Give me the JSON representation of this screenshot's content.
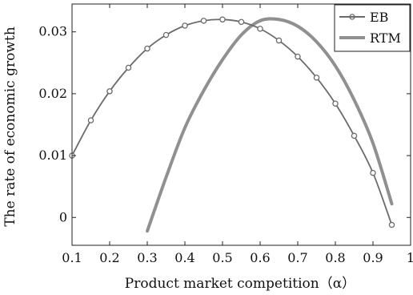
{
  "chart_data": {
    "type": "line",
    "xlabel": "Product market competition（α）",
    "ylabel": "The rate of economic growth",
    "xlim": [
      0.1,
      1.0
    ],
    "ylim": [
      -0.0045,
      0.0345
    ],
    "xticks": [
      0.1,
      0.2,
      0.3,
      0.4,
      0.5,
      0.6,
      0.7,
      0.8,
      0.9,
      1.0
    ],
    "xtick_labels": [
      "0.1",
      "0.2",
      "0.3",
      "0.4",
      "0.5",
      "0.6",
      "0.7",
      "0.8",
      "0.9",
      "1"
    ],
    "yticks": [
      0,
      0.01,
      0.02,
      0.03
    ],
    "ytick_labels": [
      "0",
      "0.01",
      "0.02",
      "0.03"
    ],
    "grid": false,
    "legend_position": "top-right",
    "series": [
      {
        "name": "EB",
        "style": "line-with-circle-markers",
        "color": "#6b6b6b",
        "x": [
          0.1,
          0.15,
          0.2,
          0.25,
          0.3,
          0.35,
          0.4,
          0.45,
          0.5,
          0.55,
          0.6,
          0.65,
          0.7,
          0.75,
          0.8,
          0.85,
          0.9,
          0.95
        ],
        "y": [
          0.01,
          0.0157,
          0.0204,
          0.0242,
          0.0273,
          0.0295,
          0.031,
          0.0318,
          0.032,
          0.0316,
          0.0305,
          0.0286,
          0.026,
          0.0226,
          0.0184,
          0.0132,
          0.0072,
          -0.0012
        ]
      },
      {
        "name": "RTM",
        "style": "thick-line",
        "color": "#909090",
        "x": [
          0.3,
          0.35,
          0.4,
          0.45,
          0.5,
          0.55,
          0.6,
          0.65,
          0.7,
          0.75,
          0.8,
          0.85,
          0.9,
          0.95
        ],
        "y": [
          -0.0022,
          0.0065,
          0.0145,
          0.0205,
          0.0255,
          0.0295,
          0.0318,
          0.032,
          0.0309,
          0.0284,
          0.0245,
          0.019,
          0.012,
          0.0022
        ]
      }
    ]
  }
}
